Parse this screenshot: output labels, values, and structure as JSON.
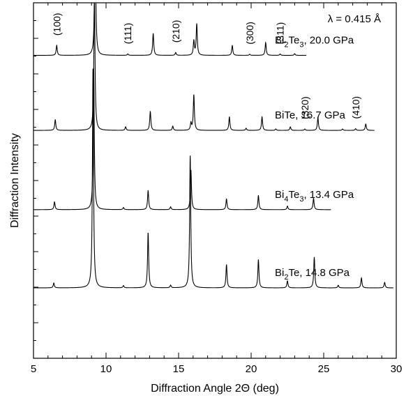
{
  "chart_data": {
    "type": "line",
    "xlabel": "Diffraction Angle 2Θ (deg)",
    "ylabel": "Diffraction Intensity",
    "xlim": [
      5,
      30
    ],
    "x_ticks": [
      "5",
      "10",
      "15",
      "20",
      "25",
      "30"
    ],
    "annotation": "λ = 0.415 Å",
    "grid": false,
    "series": [
      {
        "label_base": "Bi",
        "label_sub1": "2",
        "label_mid": "Te",
        "label_sub2": "3",
        "label_rest": ", 20.0 GPa",
        "x_range": [
          5.0,
          23.8
        ],
        "baseline": 0.852,
        "peaks": [
          {
            "x": 6.6,
            "h": 0.07
          },
          {
            "x": 9.25,
            "h": 1.0
          },
          {
            "x": 11.5,
            "h": 0.01
          },
          {
            "x": 13.25,
            "h": 0.155
          },
          {
            "x": 14.8,
            "h": 0.02
          },
          {
            "x": 16.05,
            "h": 0.1
          },
          {
            "x": 16.25,
            "h": 0.22
          },
          {
            "x": 18.7,
            "h": 0.07
          },
          {
            "x": 19.9,
            "h": 0.008
          },
          {
            "x": 21.0,
            "h": 0.09
          },
          {
            "x": 22.0,
            "h": 0.01
          },
          {
            "x": 23.0,
            "h": 0.012
          }
        ],
        "hkl": [
          {
            "x": 6.6,
            "label": "(100)"
          },
          {
            "x": 11.5,
            "label": "(111)"
          },
          {
            "x": 14.8,
            "label": "(210)"
          },
          {
            "x": 19.9,
            "label": "(300)"
          },
          {
            "x": 22.0,
            "label": "(311)"
          }
        ]
      },
      {
        "label_base": "BiTe,",
        "label_sub1": "",
        "label_mid": "",
        "label_sub2": "",
        "label_rest": " 16.7 GPa",
        "x_range": [
          5.0,
          28.5
        ],
        "baseline": 0.641,
        "peaks": [
          {
            "x": 6.5,
            "h": 0.075
          },
          {
            "x": 9.2,
            "h": 1.0
          },
          {
            "x": 11.35,
            "h": 0.025
          },
          {
            "x": 13.05,
            "h": 0.135
          },
          {
            "x": 14.6,
            "h": 0.03
          },
          {
            "x": 15.85,
            "h": 0.05
          },
          {
            "x": 16.05,
            "h": 0.25
          },
          {
            "x": 18.5,
            "h": 0.095
          },
          {
            "x": 19.65,
            "h": 0.015
          },
          {
            "x": 20.75,
            "h": 0.095
          },
          {
            "x": 21.7,
            "h": 0.01
          },
          {
            "x": 22.7,
            "h": 0.025
          },
          {
            "x": 23.7,
            "h": 0.01
          },
          {
            "x": 24.6,
            "h": 0.09
          },
          {
            "x": 26.3,
            "h": 0.01
          },
          {
            "x": 27.2,
            "h": 0.012
          },
          {
            "x": 27.9,
            "h": 0.045
          }
        ],
        "hkl": [
          {
            "x": 23.7,
            "label": "(320)"
          },
          {
            "x": 27.2,
            "label": "(410)"
          }
        ]
      },
      {
        "label_base": "Bi",
        "label_sub1": "4",
        "label_mid": "Te",
        "label_sub2": "3",
        "label_rest": ", 13.4 GPa",
        "x_range": [
          5.0,
          25.5
        ],
        "baseline": 0.418,
        "peaks": [
          {
            "x": 6.45,
            "h": 0.055
          },
          {
            "x": 9.15,
            "h": 1.0
          },
          {
            "x": 11.2,
            "h": 0.015
          },
          {
            "x": 12.9,
            "h": 0.135
          },
          {
            "x": 14.45,
            "h": 0.02
          },
          {
            "x": 15.85,
            "h": 0.28
          },
          {
            "x": 18.3,
            "h": 0.075
          },
          {
            "x": 20.5,
            "h": 0.1
          },
          {
            "x": 22.5,
            "h": 0.025
          },
          {
            "x": 24.3,
            "h": 0.08
          }
        ],
        "hkl": []
      },
      {
        "label_base": "Bi",
        "label_sub1": "2",
        "label_mid": "Te,",
        "label_sub2": "",
        "label_rest": "  14.8 GPa",
        "x_range": [
          5.0,
          29.8
        ],
        "baseline": 0.198,
        "peaks": [
          {
            "x": 6.4,
            "h": 0.022
          },
          {
            "x": 9.1,
            "h": 1.0
          },
          {
            "x": 11.2,
            "h": 0.01
          },
          {
            "x": 12.9,
            "h": 0.25
          },
          {
            "x": 14.45,
            "h": 0.012
          },
          {
            "x": 15.8,
            "h": 0.6
          },
          {
            "x": 18.3,
            "h": 0.105
          },
          {
            "x": 20.5,
            "h": 0.128
          },
          {
            "x": 22.5,
            "h": 0.032
          },
          {
            "x": 24.35,
            "h": 0.14
          },
          {
            "x": 26.0,
            "h": 0.012
          },
          {
            "x": 27.6,
            "h": 0.045
          },
          {
            "x": 29.2,
            "h": 0.025
          }
        ],
        "hkl": []
      }
    ]
  }
}
